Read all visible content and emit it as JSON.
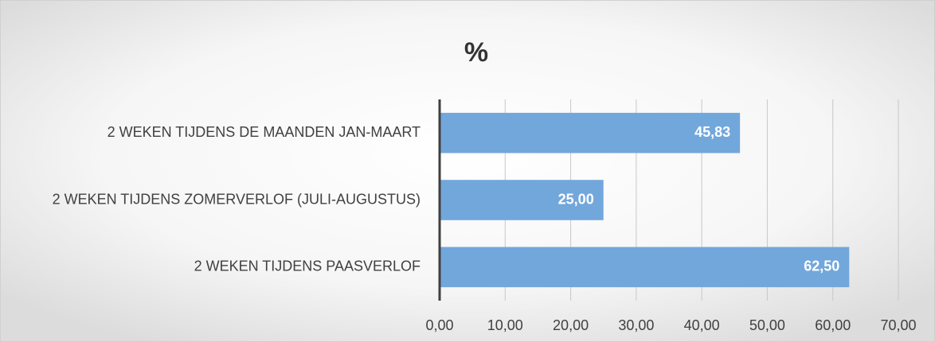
{
  "chart_data": {
    "type": "bar",
    "orientation": "horizontal",
    "title": "%",
    "categories": [
      "2 WEKEN TIJDENS DE MAANDEN JAN-MAART",
      "2 WEKEN TIJDENS ZOMERVERLOF (JULI-AUGUSTUS)",
      "2 WEKEN TIJDENS PAASVERLOF"
    ],
    "values": [
      45.83,
      25.0,
      62.5
    ],
    "value_labels": [
      "45,83",
      "25,00",
      "62,50"
    ],
    "color": "#72a7db",
    "xlim": [
      0,
      70
    ],
    "xticks": [
      {
        "value": 0,
        "label": "0,00"
      },
      {
        "value": 10,
        "label": "10,00"
      },
      {
        "value": 20,
        "label": "20,00"
      },
      {
        "value": 30,
        "label": "30,00"
      },
      {
        "value": 40,
        "label": "40,00"
      },
      {
        "value": 50,
        "label": "50,00"
      },
      {
        "value": 60,
        "label": "60,00"
      },
      {
        "value": 70,
        "label": "70,00"
      }
    ],
    "grid": true
  }
}
